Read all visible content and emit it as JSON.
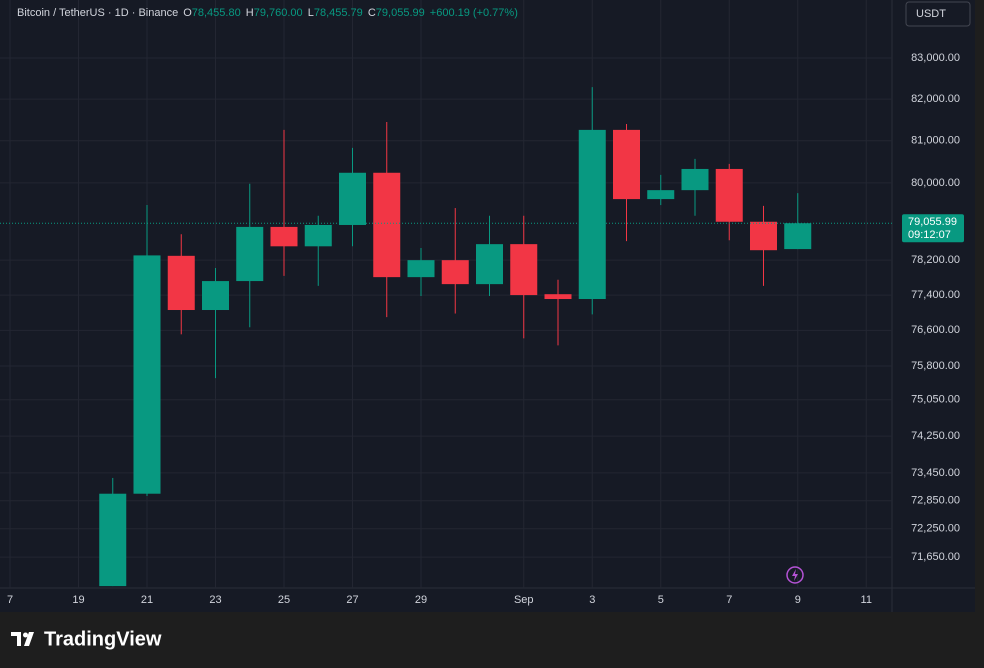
{
  "chart_data": {
    "type": "candlestick",
    "header": {
      "symbol": "Bitcoin / TetherUS · 1D · Binance",
      "open_key": "O",
      "open": "78,455.80",
      "high_key": "H",
      "high": "79,760.00",
      "low_key": "L",
      "low": "78,455.79",
      "close_key": "C",
      "close": "79,055.99",
      "change": "+600.19 (+0.77%)"
    },
    "currency_button": "USDT",
    "price_label": {
      "price": "79,055.99",
      "countdown": "09:12:07"
    },
    "brand": "TradingView",
    "log_scale": true,
    "grid": true,
    "up_color": "#089981",
    "down_color": "#f23645",
    "categories": [
      "7",
      null,
      "19",
      null,
      "21",
      null,
      "23",
      null,
      "25",
      null,
      "27",
      null,
      "29",
      null,
      null,
      "Sep",
      null,
      "3",
      null,
      "5",
      null,
      "7",
      null,
      "9",
      null,
      "11"
    ],
    "open": [
      null,
      null,
      null,
      71040,
      73000,
      78300,
      77060,
      77720,
      78970,
      78520,
      79015,
      80240,
      77810,
      78200,
      77650,
      78570,
      77420,
      77310,
      81260,
      79620,
      79830,
      80330,
      79090,
      78455.8,
      null,
      null
    ],
    "high": [
      null,
      null,
      null,
      73340,
      79480,
      78800,
      78020,
      79980,
      81260,
      79230,
      80830,
      81450,
      78480,
      79410,
      79230,
      79230,
      77750,
      82290,
      81400,
      80190,
      80570,
      80450,
      79460,
      79760,
      null,
      null
    ],
    "low": [
      null,
      null,
      null,
      71040,
      72950,
      76510,
      75530,
      76670,
      77840,
      77610,
      78520,
      76900,
      77380,
      76980,
      77380,
      76420,
      76260,
      76960,
      78640,
      79480,
      79230,
      78660,
      77610,
      78455.79,
      null,
      null
    ],
    "close": [
      null,
      null,
      null,
      73000,
      78310,
      77060,
      77720,
      78970,
      78520,
      79015,
      80240,
      77810,
      78200,
      77650,
      78570,
      77400,
      77310,
      81260,
      79620,
      79830,
      80330,
      79090,
      78430,
      79055.99,
      null,
      null
    ],
    "ylim": [
      71000,
      84430
    ],
    "yticks": [
      {
        "value": 83000,
        "label": "83,000.00"
      },
      {
        "value": 82000,
        "label": "82,000.00"
      },
      {
        "value": 81000,
        "label": "81,000.00"
      },
      {
        "value": 80000,
        "label": "80,000.00"
      },
      {
        "value": 78200,
        "label": "78,200.00"
      },
      {
        "value": 77400,
        "label": "77,400.00"
      },
      {
        "value": 76600,
        "label": "76,600.00"
      },
      {
        "value": 75800,
        "label": "75,800.00"
      },
      {
        "value": 75050,
        "label": "75,050.00"
      },
      {
        "value": 74250,
        "label": "74,250.00"
      },
      {
        "value": 73450,
        "label": "73,450.00"
      },
      {
        "value": 72850,
        "label": "72,850.00"
      },
      {
        "value": 72250,
        "label": "72,250.00"
      },
      {
        "value": 71650,
        "label": "71,650.00"
      }
    ]
  }
}
